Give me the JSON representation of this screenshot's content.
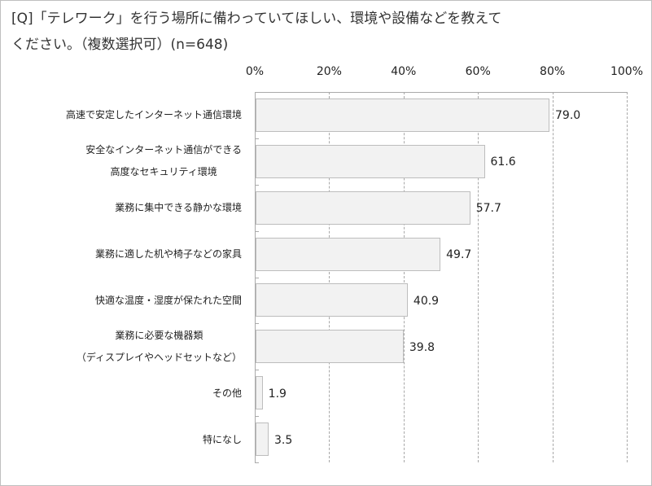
{
  "chart_data": {
    "type": "bar",
    "orientation": "horizontal",
    "title": "[Q]「テレワーク」を行う場所に備わっていてほしい、環境や設備などを教えてください。（複数選択可）(n=648)",
    "title_lines": [
      "[Q]「テレワーク」を行う場所に備わっていてほしい、環境や設備などを教えて",
      "ください。（複数選択可）(n=648)"
    ],
    "xlabel": "",
    "ylabel": "",
    "xlim": [
      0,
      100
    ],
    "x_ticks": [
      "0%",
      "20%",
      "40%",
      "60%",
      "80%",
      "100%"
    ],
    "x_axis_position": "top",
    "grid": true,
    "legend": null,
    "categories": [
      [
        "高速で安定したインターネット通信環境"
      ],
      [
        "安全なインターネット通信ができる",
        "高度なセキュリティ環境"
      ],
      [
        "業務に集中できる静かな環境"
      ],
      [
        "業務に適した机や椅子などの家具"
      ],
      [
        "快適な温度・湿度が保たれた空間"
      ],
      [
        "業務に必要な機器類",
        "（ディスプレイやヘッドセットなど）"
      ],
      [
        "その他"
      ],
      [
        "特になし"
      ]
    ],
    "values": [
      79.0,
      61.6,
      57.7,
      49.7,
      40.9,
      39.8,
      1.9,
      3.5
    ],
    "value_labels": [
      "79.0",
      "61.6",
      "57.7",
      "49.7",
      "40.9",
      "39.8",
      "1.9",
      "3.5"
    ],
    "colors": {
      "bar_fill": "#f2f2f2",
      "bar_border": "#bdbdbd",
      "grid": "#a8a8a8"
    }
  }
}
